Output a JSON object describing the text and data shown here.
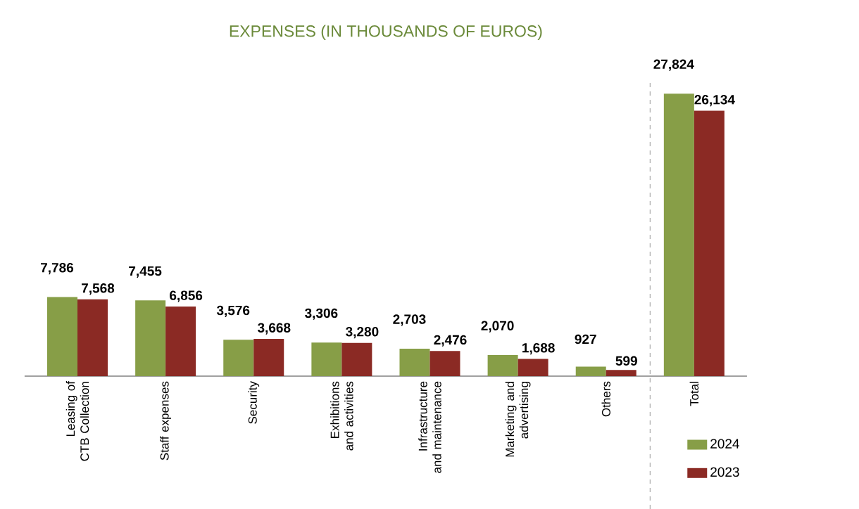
{
  "chart_data": {
    "type": "bar",
    "title": "EXPENSES (IN THOUSANDS OF EUROS)",
    "categories": [
      "Leasing of CTB Collection",
      "Staff expenses",
      "Security",
      "Exhibitions and activities",
      "Infrastructure and maintenance",
      "Marketing and advertising",
      "Others",
      "Total"
    ],
    "series": [
      {
        "name": "2024",
        "color": "#879e47",
        "values": [
          7786,
          7455,
          3576,
          3306,
          2703,
          2070,
          927,
          27824
        ],
        "value_labels": [
          "7,786",
          "7,455",
          "3,576",
          "3,306",
          "2,703",
          "2,070",
          "927",
          "27,824"
        ]
      },
      {
        "name": "2023",
        "color": "#8b2a24",
        "values": [
          7568,
          6856,
          3668,
          3280,
          2476,
          1688,
          599,
          26134
        ],
        "value_labels": [
          "7,568",
          "6,856",
          "3,668",
          "3,280",
          "2,476",
          "1,688",
          "599",
          "26,134"
        ]
      }
    ],
    "legend": "bottom right"
  }
}
